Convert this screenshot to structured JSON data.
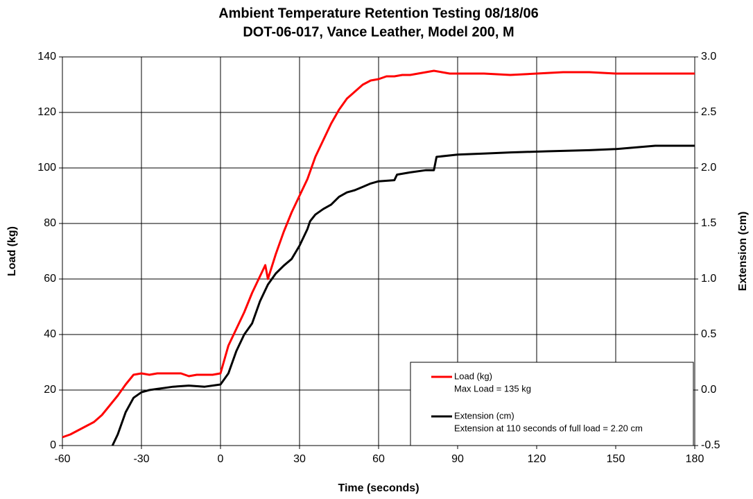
{
  "chart_data": {
    "type": "line",
    "title": "Ambient Temperature Retention Testing 08/18/06",
    "subtitle": "DOT-06-017, Vance Leather, Model 200, M",
    "x_label": "Time (seconds)",
    "y_label": "Load (kg)",
    "y2_label": "Extension (cm)",
    "xlim": [
      -60,
      180
    ],
    "xticks": [
      -60,
      -30,
      0,
      30,
      60,
      90,
      120,
      150,
      180
    ],
    "ylim": [
      0,
      140
    ],
    "yticks": [
      0,
      20,
      40,
      60,
      80,
      100,
      120,
      140
    ],
    "y2lim": [
      -0.5,
      3.0
    ],
    "y2ticks": [
      -0.5,
      {
        "value": 0,
        "label": "0.0"
      },
      0.5,
      {
        "value": 1,
        "label": "1.0"
      },
      1.5,
      {
        "value": 2,
        "label": "2.0"
      },
      2.5,
      {
        "value": 3,
        "label": "3.0"
      }
    ],
    "grid": true,
    "legend": "lower right",
    "series": [
      {
        "name": "Load (kg)",
        "annotation": "Max Load = 135 kg",
        "color": "#ff0000",
        "x": [
          -60,
          -57,
          -54,
          -51,
          -48,
          -45,
          -42,
          -39,
          -36,
          -33,
          -30,
          -27,
          -24,
          -21,
          -18,
          -15,
          -12,
          -9,
          -6,
          -3,
          0,
          3,
          6,
          9,
          12,
          15,
          17,
          18,
          21,
          24,
          27,
          30,
          33,
          36,
          39,
          42,
          45,
          48,
          51,
          54,
          57,
          60,
          63,
          66,
          69,
          72,
          75,
          78,
          81,
          84,
          87,
          90,
          100,
          110,
          120,
          130,
          140,
          150,
          160,
          170,
          180
        ],
        "values": [
          3,
          4,
          5.5,
          7,
          8.5,
          11,
          14.5,
          18,
          22,
          25.5,
          26,
          25.5,
          26,
          26,
          26,
          26,
          25,
          25.5,
          25.5,
          25.5,
          26,
          36,
          42,
          48,
          55,
          61,
          65,
          60,
          69,
          77,
          84,
          90,
          96,
          104,
          110,
          116,
          121,
          125,
          127.5,
          130,
          131.5,
          132,
          133,
          133,
          133.5,
          133.5,
          134,
          134.5,
          135,
          134.5,
          134,
          134,
          134,
          133.5,
          134,
          134.5,
          134.5,
          134,
          134,
          134,
          134
        ]
      },
      {
        "name": "Extension (cm)",
        "annotation": "Extension at 110 seconds of full load = 2.20 cm",
        "color": "#000000",
        "axis": "y2",
        "x": [
          -41,
          -39,
          -36,
          -33,
          -30,
          -27,
          -24,
          -21,
          -18,
          -12,
          -6,
          0,
          3,
          6,
          9,
          12,
          15,
          18,
          21,
          24,
          27,
          30,
          33,
          34,
          36,
          39,
          42,
          45,
          48,
          51,
          54,
          57,
          60,
          66,
          67,
          72,
          78,
          81,
          82,
          90,
          100,
          110,
          124,
          140,
          150,
          165,
          180
        ],
        "values": [
          -0.5,
          -0.4,
          -0.2,
          -0.07,
          -0.02,
          0,
          0.01,
          0.02,
          0.03,
          0.04,
          0.03,
          0.05,
          0.15,
          0.35,
          0.5,
          0.6,
          0.8,
          0.95,
          1.05,
          1.12,
          1.18,
          1.3,
          1.45,
          1.52,
          1.58,
          1.63,
          1.67,
          1.74,
          1.78,
          1.8,
          1.83,
          1.86,
          1.88,
          1.89,
          1.94,
          1.96,
          1.98,
          1.98,
          2.1,
          2.12,
          2.13,
          2.14,
          2.15,
          2.16,
          2.17,
          2.2,
          2.2
        ]
      }
    ]
  }
}
